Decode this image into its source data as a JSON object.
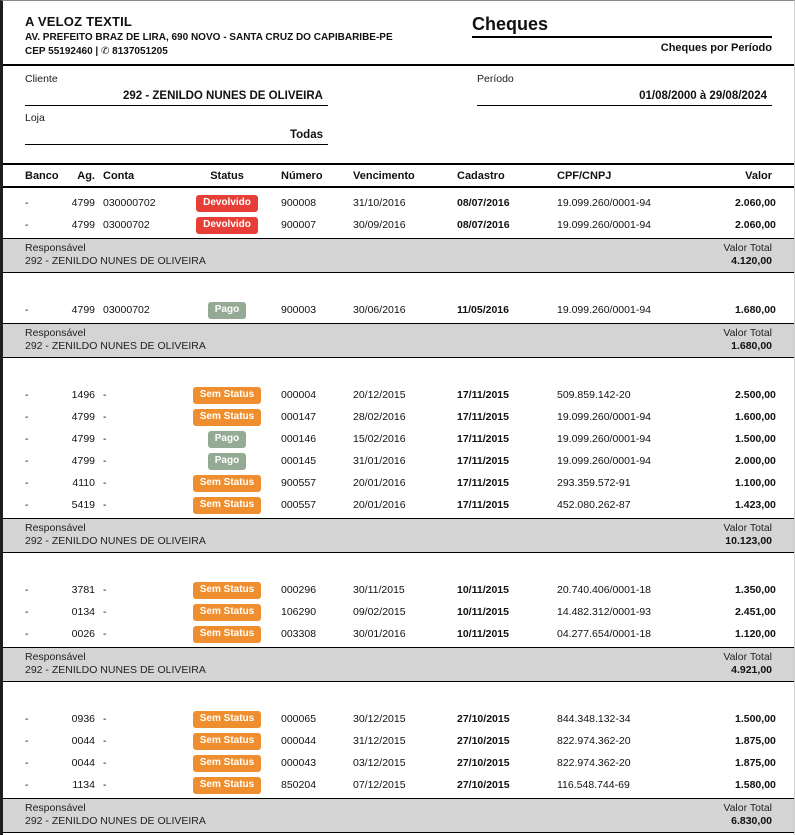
{
  "company": {
    "name": "A VELOZ TEXTIL",
    "address": "AV. PREFEITO BRAZ DE LIRA, 690 NOVO - SANTA CRUZ DO CAPIBARIBE-PE",
    "cep_phone": "CEP 55192460 | ✆ 8137051205"
  },
  "report": {
    "title": "Cheques",
    "subtitle": "Cheques por Período"
  },
  "filters": {
    "cliente_label": "Cliente",
    "cliente_value": "292 - ZENILDO NUNES DE OLIVEIRA",
    "loja_label": "Loja",
    "loja_value": "Todas",
    "periodo_label": "Período",
    "periodo_value": "01/08/2000 à 29/08/2024"
  },
  "table": {
    "columns": [
      "Banco",
      "Ag.",
      "Conta",
      "Status",
      "Número",
      "Vencimento",
      "Cadastro",
      "CPF/CNPJ",
      "Valor"
    ],
    "footer_labels": {
      "responsavel": "Responsável",
      "valor_total": "Valor Total"
    }
  },
  "status_colors": {
    "Devolvido": "#e73f38",
    "Pago": "#94aa94",
    "Sem Status": "#ef8e2e"
  },
  "groups": [
    {
      "rows": [
        {
          "banco": "-",
          "ag": "4799",
          "conta": "030000702",
          "status": "Devolvido",
          "numero": "900008",
          "vencimento": "31/10/2016",
          "cadastro": "08/07/2016",
          "cpf_cnpj": "19.099.260/0001-94",
          "valor": "2.060,00"
        },
        {
          "banco": "-",
          "ag": "4799",
          "conta": "03000702",
          "status": "Devolvido",
          "numero": "900007",
          "vencimento": "30/09/2016",
          "cadastro": "08/07/2016",
          "cpf_cnpj": "19.099.260/0001-94",
          "valor": "2.060,00"
        }
      ],
      "responsavel": "292 - ZENILDO NUNES DE OLIVEIRA",
      "valor_total": "4.120,00"
    },
    {
      "rows": [
        {
          "banco": "-",
          "ag": "4799",
          "conta": "03000702",
          "status": "Pago",
          "numero": "900003",
          "vencimento": "30/06/2016",
          "cadastro": "11/05/2016",
          "cpf_cnpj": "19.099.260/0001-94",
          "valor": "1.680,00"
        }
      ],
      "responsavel": "292 - ZENILDO NUNES DE OLIVEIRA",
      "valor_total": "1.680,00"
    },
    {
      "rows": [
        {
          "banco": "-",
          "ag": "1496",
          "conta": "-",
          "status": "Sem Status",
          "numero": "000004",
          "vencimento": "20/12/2015",
          "cadastro": "17/11/2015",
          "cpf_cnpj": "509.859.142-20",
          "valor": "2.500,00"
        },
        {
          "banco": "-",
          "ag": "4799",
          "conta": "-",
          "status": "Sem Status",
          "numero": "000147",
          "vencimento": "28/02/2016",
          "cadastro": "17/11/2015",
          "cpf_cnpj": "19.099.260/0001-94",
          "valor": "1.600,00"
        },
        {
          "banco": "-",
          "ag": "4799",
          "conta": "-",
          "status": "Pago",
          "numero": "000146",
          "vencimento": "15/02/2016",
          "cadastro": "17/11/2015",
          "cpf_cnpj": "19.099.260/0001-94",
          "valor": "1.500,00"
        },
        {
          "banco": "-",
          "ag": "4799",
          "conta": "-",
          "status": "Pago",
          "numero": "000145",
          "vencimento": "31/01/2016",
          "cadastro": "17/11/2015",
          "cpf_cnpj": "19.099.260/0001-94",
          "valor": "2.000,00"
        },
        {
          "banco": "-",
          "ag": "4110",
          "conta": "-",
          "status": "Sem Status",
          "numero": "900557",
          "vencimento": "20/01/2016",
          "cadastro": "17/11/2015",
          "cpf_cnpj": "293.359.572-91",
          "valor": "1.100,00"
        },
        {
          "banco": "-",
          "ag": "5419",
          "conta": "-",
          "status": "Sem Status",
          "numero": "000557",
          "vencimento": "20/01/2016",
          "cadastro": "17/11/2015",
          "cpf_cnpj": "452.080.262-87",
          "valor": "1.423,00"
        }
      ],
      "responsavel": "292 - ZENILDO NUNES DE OLIVEIRA",
      "valor_total": "10.123,00"
    },
    {
      "rows": [
        {
          "banco": "-",
          "ag": "3781",
          "conta": "-",
          "status": "Sem Status",
          "numero": "000296",
          "vencimento": "30/11/2015",
          "cadastro": "10/11/2015",
          "cpf_cnpj": "20.740.406/0001-18",
          "valor": "1.350,00"
        },
        {
          "banco": "-",
          "ag": "0134",
          "conta": "-",
          "status": "Sem Status",
          "numero": "106290",
          "vencimento": "09/02/2015",
          "cadastro": "10/11/2015",
          "cpf_cnpj": "14.482.312/0001-93",
          "valor": "2.451,00"
        },
        {
          "banco": "-",
          "ag": "0026",
          "conta": "-",
          "status": "Sem Status",
          "numero": "003308",
          "vencimento": "30/01/2016",
          "cadastro": "10/11/2015",
          "cpf_cnpj": "04.277.654/0001-18",
          "valor": "1.120,00"
        }
      ],
      "responsavel": "292 - ZENILDO NUNES DE OLIVEIRA",
      "valor_total": "4.921,00"
    },
    {
      "rows": [
        {
          "banco": "-",
          "ag": "0936",
          "conta": "-",
          "status": "Sem Status",
          "numero": "000065",
          "vencimento": "30/12/2015",
          "cadastro": "27/10/2015",
          "cpf_cnpj": "844.348.132-34",
          "valor": "1.500,00"
        },
        {
          "banco": "-",
          "ag": "0044",
          "conta": "-",
          "status": "Sem Status",
          "numero": "000044",
          "vencimento": "31/12/2015",
          "cadastro": "27/10/2015",
          "cpf_cnpj": "822.974.362-20",
          "valor": "1.875,00"
        },
        {
          "banco": "-",
          "ag": "0044",
          "conta": "-",
          "status": "Sem Status",
          "numero": "000043",
          "vencimento": "03/12/2015",
          "cadastro": "27/10/2015",
          "cpf_cnpj": "822.974.362-20",
          "valor": "1.875,00"
        },
        {
          "banco": "-",
          "ag": "1134",
          "conta": "-",
          "status": "Sem Status",
          "numero": "850204",
          "vencimento": "07/12/2015",
          "cadastro": "27/10/2015",
          "cpf_cnpj": "116.548.744-69",
          "valor": "1.580,00"
        }
      ],
      "responsavel": "292 - ZENILDO NUNES DE OLIVEIRA",
      "valor_total": "6.830,00"
    }
  ]
}
